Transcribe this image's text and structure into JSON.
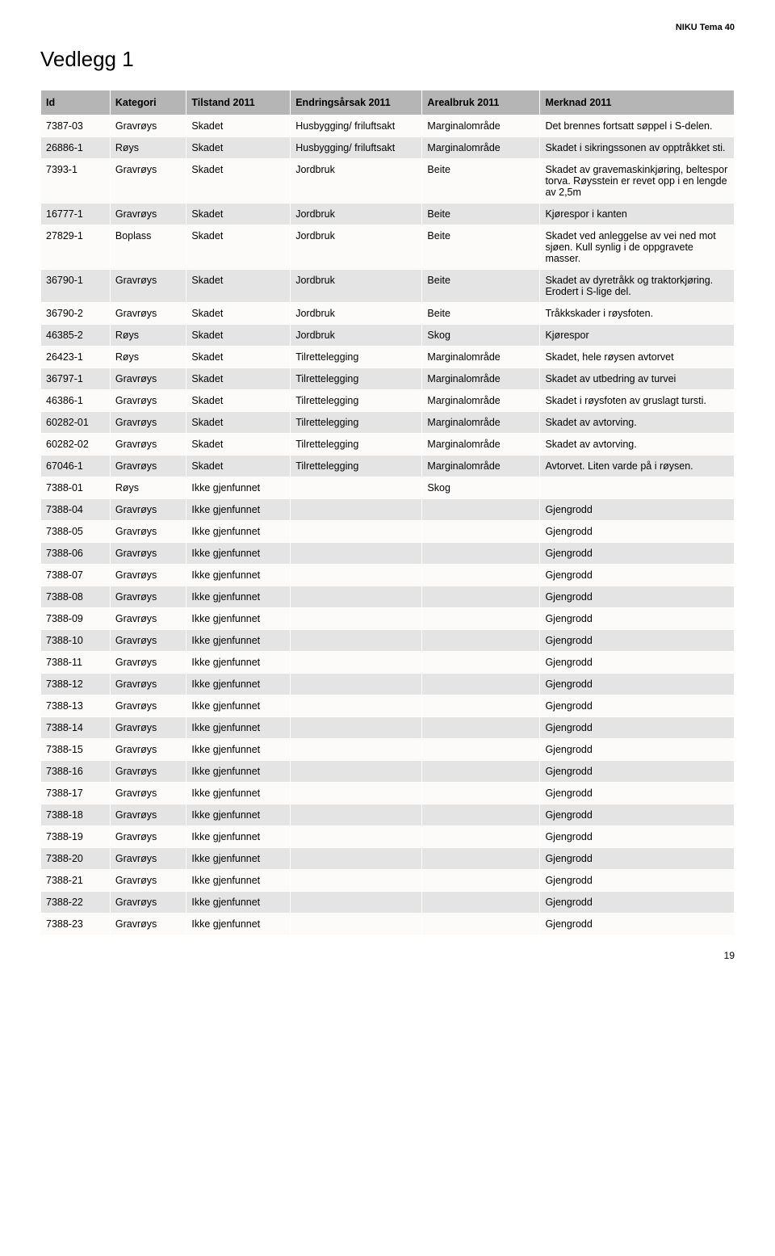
{
  "doc_label": "NIKU Tema 40",
  "title": "Vedlegg 1",
  "page_number": "19",
  "table": {
    "columns": [
      "Id",
      "Kategori",
      "Tilstand 2011",
      "Endringsårsak 2011",
      "Arealbruk 2011",
      "Merknad 2011"
    ],
    "rows": [
      [
        "7387-03",
        "Gravrøys",
        "Skadet",
        "Husbygging/ friluftsakt",
        "Marginalområde",
        "Det brennes fortsatt søppel i S-delen."
      ],
      [
        "26886-1",
        "Røys",
        "Skadet",
        "Husbygging/ friluftsakt",
        "Marginalområde",
        "Skadet i sikringssonen av opptråkket sti."
      ],
      [
        "7393-1",
        "Gravrøys",
        "Skadet",
        "Jordbruk",
        "Beite",
        "Skadet av gravemaskinkjøring, beltespor torva. Røysstein er revet opp i en lengde av 2,5m"
      ],
      [
        "16777-1",
        "Gravrøys",
        "Skadet",
        "Jordbruk",
        "Beite",
        "Kjørespor i kanten"
      ],
      [
        "27829-1",
        "Boplass",
        "Skadet",
        "Jordbruk",
        "Beite",
        "Skadet ved anleggelse av vei ned mot sjøen. Kull synlig i de oppgravete masser."
      ],
      [
        "36790-1",
        "Gravrøys",
        "Skadet",
        "Jordbruk",
        "Beite",
        "Skadet av dyretråkk og traktorkjøring. Erodert i S-lige del."
      ],
      [
        "36790-2",
        "Gravrøys",
        "Skadet",
        "Jordbruk",
        "Beite",
        "Tråkkskader i røysfoten."
      ],
      [
        "46385-2",
        "Røys",
        "Skadet",
        "Jordbruk",
        "Skog",
        "Kjørespor"
      ],
      [
        "26423-1",
        "Røys",
        "Skadet",
        "Tilrettelegging",
        "Marginalområde",
        "Skadet, hele røysen avtorvet"
      ],
      [
        "36797-1",
        "Gravrøys",
        "Skadet",
        "Tilrettelegging",
        "Marginalområde",
        "Skadet av utbedring av turvei"
      ],
      [
        "46386-1",
        "Gravrøys",
        "Skadet",
        "Tilrettelegging",
        "Marginalområde",
        "Skadet i røysfoten av gruslagt tursti."
      ],
      [
        "60282-01",
        "Gravrøys",
        "Skadet",
        "Tilrettelegging",
        "Marginalområde",
        "Skadet av avtorving."
      ],
      [
        "60282-02",
        "Gravrøys",
        "Skadet",
        "Tilrettelegging",
        "Marginalområde",
        "Skadet av avtorving."
      ],
      [
        "67046-1",
        "Gravrøys",
        "Skadet",
        "Tilrettelegging",
        "Marginalområde",
        "Avtorvet. Liten varde på i røysen."
      ],
      [
        "7388-01",
        "Røys",
        "Ikke gjenfunnet",
        "",
        "Skog",
        ""
      ],
      [
        "7388-04",
        "Gravrøys",
        "Ikke gjenfunnet",
        "",
        "",
        "Gjengrodd"
      ],
      [
        "7388-05",
        "Gravrøys",
        "Ikke gjenfunnet",
        "",
        "",
        "Gjengrodd"
      ],
      [
        "7388-06",
        "Gravrøys",
        "Ikke gjenfunnet",
        "",
        "",
        "Gjengrodd"
      ],
      [
        "7388-07",
        "Gravrøys",
        "Ikke gjenfunnet",
        "",
        "",
        "Gjengrodd"
      ],
      [
        "7388-08",
        "Gravrøys",
        "Ikke gjenfunnet",
        "",
        "",
        "Gjengrodd"
      ],
      [
        "7388-09",
        "Gravrøys",
        "Ikke gjenfunnet",
        "",
        "",
        "Gjengrodd"
      ],
      [
        "7388-10",
        "Gravrøys",
        "Ikke gjenfunnet",
        "",
        "",
        "Gjengrodd"
      ],
      [
        "7388-11",
        "Gravrøys",
        "Ikke gjenfunnet",
        "",
        "",
        "Gjengrodd"
      ],
      [
        "7388-12",
        "Gravrøys",
        "Ikke gjenfunnet",
        "",
        "",
        "Gjengrodd"
      ],
      [
        "7388-13",
        "Gravrøys",
        "Ikke gjenfunnet",
        "",
        "",
        "Gjengrodd"
      ],
      [
        "7388-14",
        "Gravrøys",
        "Ikke gjenfunnet",
        "",
        "",
        "Gjengrodd"
      ],
      [
        "7388-15",
        "Gravrøys",
        "Ikke gjenfunnet",
        "",
        "",
        "Gjengrodd"
      ],
      [
        "7388-16",
        "Gravrøys",
        "Ikke gjenfunnet",
        "",
        "",
        "Gjengrodd"
      ],
      [
        "7388-17",
        "Gravrøys",
        "Ikke gjenfunnet",
        "",
        "",
        "Gjengrodd"
      ],
      [
        "7388-18",
        "Gravrøys",
        "Ikke gjenfunnet",
        "",
        "",
        "Gjengrodd"
      ],
      [
        "7388-19",
        "Gravrøys",
        "Ikke gjenfunnet",
        "",
        "",
        "Gjengrodd"
      ],
      [
        "7388-20",
        "Gravrøys",
        "Ikke gjenfunnet",
        "",
        "",
        "Gjengrodd"
      ],
      [
        "7388-21",
        "Gravrøys",
        "Ikke gjenfunnet",
        "",
        "",
        "Gjengrodd"
      ],
      [
        "7388-22",
        "Gravrøys",
        "Ikke gjenfunnet",
        "",
        "",
        "Gjengrodd"
      ],
      [
        "7388-23",
        "Gravrøys",
        "Ikke gjenfunnet",
        "",
        "",
        "Gjengrodd"
      ]
    ]
  }
}
